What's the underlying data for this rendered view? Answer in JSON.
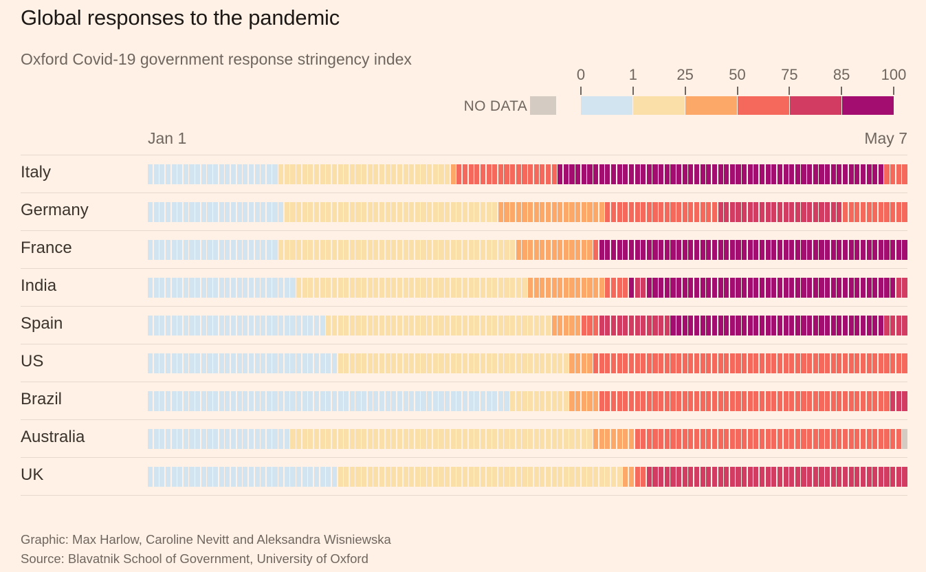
{
  "header": {
    "title": "Global responses to the pandemic",
    "subtitle": "Oxford Covid-19 government response stringency index"
  },
  "axis": {
    "start_label": "Jan 1",
    "end_label": "May 7"
  },
  "legend": {
    "no_data_label": "NO DATA",
    "no_data_color": "#d4cbc2",
    "ticks": [
      "0",
      "1",
      "25",
      "50",
      "75",
      "85",
      "100"
    ],
    "band_colors": [
      "#d2e4f0",
      "#fadfa9",
      "#fba868",
      "#f4695c",
      "#d23c63",
      "#a30d70"
    ]
  },
  "chart_data": {
    "type": "heatmap",
    "title": "Global responses to the pandemic",
    "subtitle": "Oxford Covid-19 government response stringency index",
    "x_range": [
      "Jan 1",
      "May 7"
    ],
    "n_days": 128,
    "legend_position": "top-right",
    "value_bands": [
      {
        "key": "blue",
        "range": [
          0,
          1
        ],
        "color": "#d2e4f0"
      },
      {
        "key": "yellow",
        "range": [
          1,
          25
        ],
        "color": "#fadfa9"
      },
      {
        "key": "orange",
        "range": [
          25,
          50
        ],
        "color": "#fba868"
      },
      {
        "key": "salmon",
        "range": [
          50,
          75
        ],
        "color": "#f4695c"
      },
      {
        "key": "crimson",
        "range": [
          75,
          85
        ],
        "color": "#d23c63"
      },
      {
        "key": "magenta",
        "range": [
          85,
          100
        ],
        "color": "#a30d70"
      },
      {
        "key": "nodata",
        "range": null,
        "color": "#d4cbc2"
      }
    ],
    "rows": [
      {
        "country": "Italy",
        "segments": [
          [
            "blue",
            22
          ],
          [
            "yellow",
            29
          ],
          [
            "orange",
            1
          ],
          [
            "salmon",
            17
          ],
          [
            "magenta",
            55
          ],
          [
            "salmon",
            4
          ]
        ]
      },
      {
        "country": "Germany",
        "segments": [
          [
            "blue",
            23
          ],
          [
            "yellow",
            36
          ],
          [
            "orange",
            18
          ],
          [
            "salmon",
            19
          ],
          [
            "crimson",
            21
          ],
          [
            "salmon",
            11
          ]
        ]
      },
      {
        "country": "France",
        "segments": [
          [
            "blue",
            22
          ],
          [
            "yellow",
            40
          ],
          [
            "orange",
            13
          ],
          [
            "salmon",
            1
          ],
          [
            "magenta",
            52
          ]
        ]
      },
      {
        "country": "India",
        "segments": [
          [
            "blue",
            25
          ],
          [
            "yellow",
            39
          ],
          [
            "orange",
            13
          ],
          [
            "salmon",
            4
          ],
          [
            "magenta",
            1
          ],
          [
            "crimson",
            2
          ],
          [
            "magenta",
            42
          ],
          [
            "crimson",
            2
          ]
        ]
      },
      {
        "country": "Spain",
        "segments": [
          [
            "blue",
            30
          ],
          [
            "yellow",
            38
          ],
          [
            "orange",
            5
          ],
          [
            "salmon",
            3
          ],
          [
            "crimson",
            12
          ],
          [
            "magenta",
            36
          ],
          [
            "crimson",
            4
          ]
        ]
      },
      {
        "country": "US",
        "segments": [
          [
            "blue",
            32
          ],
          [
            "yellow",
            39
          ],
          [
            "orange",
            4
          ],
          [
            "salmon",
            53
          ]
        ]
      },
      {
        "country": "Brazil",
        "segments": [
          [
            "blue",
            61
          ],
          [
            "yellow",
            10
          ],
          [
            "orange",
            5
          ],
          [
            "salmon",
            49
          ],
          [
            "crimson",
            3
          ]
        ]
      },
      {
        "country": "Australia",
        "segments": [
          [
            "blue",
            24
          ],
          [
            "yellow",
            51
          ],
          [
            "orange",
            7
          ],
          [
            "salmon",
            45
          ],
          [
            "nodata",
            1
          ]
        ]
      },
      {
        "country": "UK",
        "segments": [
          [
            "blue",
            32
          ],
          [
            "yellow",
            48
          ],
          [
            "orange",
            2
          ],
          [
            "salmon",
            2
          ],
          [
            "crimson",
            44
          ]
        ]
      }
    ]
  },
  "footer": {
    "graphic_credit": "Graphic: Max Harlow, Caroline Nevitt and Aleksandra Wisniewska",
    "source": "Source: Blavatnik School of Government, University of Oxford"
  }
}
